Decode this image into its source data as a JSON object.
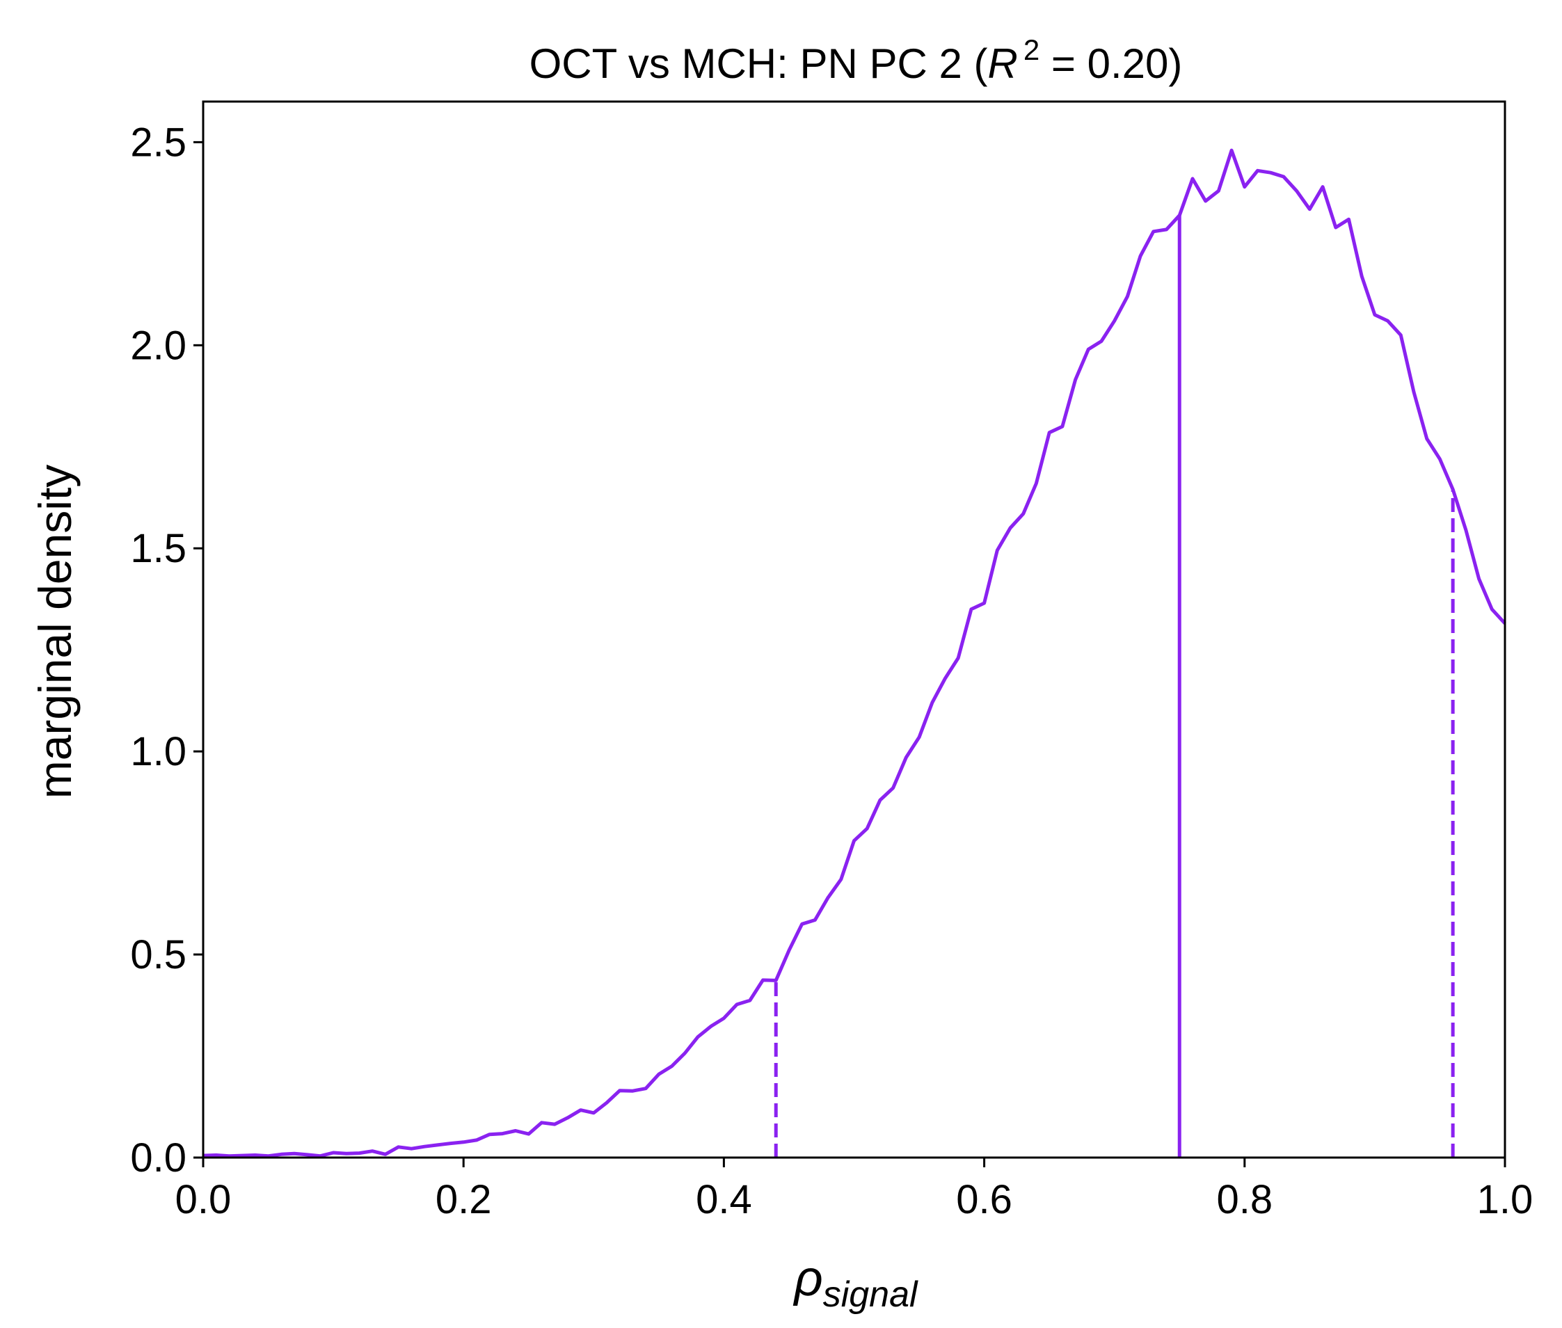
{
  "chart_data": {
    "type": "line",
    "title": {
      "prefix": "OCT vs MCH: PN PC 2 (",
      "r": "R",
      "sup": "2",
      "suffix": " = 0.20)"
    },
    "xlabel": {
      "base": "ρ",
      "sub": "signal"
    },
    "ylabel": "marginal density",
    "xlim": [
      0,
      1
    ],
    "ylim": [
      0,
      2.6
    ],
    "xticks": [
      0.0,
      0.2,
      0.4,
      0.6,
      0.8,
      1.0
    ],
    "xtick_labels": [
      "0.0",
      "0.2",
      "0.4",
      "0.6",
      "0.8",
      "1.0"
    ],
    "yticks": [
      0.0,
      0.5,
      1.0,
      1.5,
      2.0,
      2.5
    ],
    "ytick_labels": [
      "0.0",
      "0.5",
      "1.0",
      "1.5",
      "2.0",
      "2.5"
    ],
    "grid": false,
    "color": "#8a22f0",
    "series": [
      {
        "x": [
          0.0,
          0.01,
          0.02,
          0.03,
          0.04,
          0.05,
          0.06,
          0.07,
          0.08,
          0.09,
          0.1,
          0.11,
          0.12,
          0.13,
          0.14,
          0.15,
          0.16,
          0.17,
          0.18,
          0.19,
          0.2,
          0.21,
          0.22,
          0.23,
          0.24,
          0.25,
          0.26,
          0.27,
          0.28,
          0.29,
          0.3,
          0.31,
          0.32,
          0.33,
          0.34,
          0.35,
          0.36,
          0.37,
          0.38,
          0.39,
          0.4,
          0.41,
          0.42,
          0.43,
          0.44,
          0.45,
          0.46,
          0.47,
          0.48,
          0.49,
          0.5,
          0.51,
          0.52,
          0.53,
          0.54,
          0.55,
          0.56,
          0.57,
          0.58,
          0.59,
          0.6,
          0.61,
          0.62,
          0.63,
          0.64,
          0.65,
          0.66,
          0.67,
          0.68,
          0.69,
          0.7,
          0.71,
          0.72,
          0.73,
          0.74,
          0.75,
          0.76,
          0.77,
          0.78,
          0.79,
          0.8,
          0.81,
          0.82,
          0.83,
          0.84,
          0.85,
          0.86,
          0.87,
          0.88,
          0.89,
          0.9,
          0.91,
          0.92,
          0.93,
          0.94,
          0.95,
          0.96,
          0.97,
          0.98,
          0.99,
          1.0
        ],
        "y": [
          0.005,
          0.006,
          0.004,
          0.005,
          0.006,
          0.004,
          0.008,
          0.01,
          0.007,
          0.004,
          0.012,
          0.01,
          0.011,
          0.016,
          0.008,
          0.026,
          0.022,
          0.027,
          0.031,
          0.035,
          0.038,
          0.043,
          0.057,
          0.059,
          0.066,
          0.058,
          0.086,
          0.082,
          0.098,
          0.117,
          0.11,
          0.135,
          0.165,
          0.164,
          0.17,
          0.205,
          0.225,
          0.257,
          0.297,
          0.323,
          0.343,
          0.377,
          0.387,
          0.437,
          0.436,
          0.51,
          0.575,
          0.585,
          0.64,
          0.685,
          0.78,
          0.81,
          0.88,
          0.91,
          0.985,
          1.035,
          1.12,
          1.18,
          1.23,
          1.35,
          1.365,
          1.495,
          1.55,
          1.585,
          1.66,
          1.785,
          1.8,
          1.915,
          1.99,
          2.01,
          2.06,
          2.12,
          2.22,
          2.28,
          2.285,
          2.32,
          2.41,
          2.355,
          2.38,
          2.48,
          2.39,
          2.43,
          2.425,
          2.415,
          2.38,
          2.335,
          2.39,
          2.29,
          2.31,
          2.17,
          2.075,
          2.06,
          2.025,
          1.885,
          1.77,
          1.72,
          1.645,
          1.545,
          1.425,
          1.35,
          1.315
        ]
      }
    ],
    "vlines": [
      {
        "x": 0.44,
        "style": "dashed"
      },
      {
        "x": 0.75,
        "style": "solid"
      },
      {
        "x": 0.96,
        "style": "dashed"
      }
    ]
  }
}
